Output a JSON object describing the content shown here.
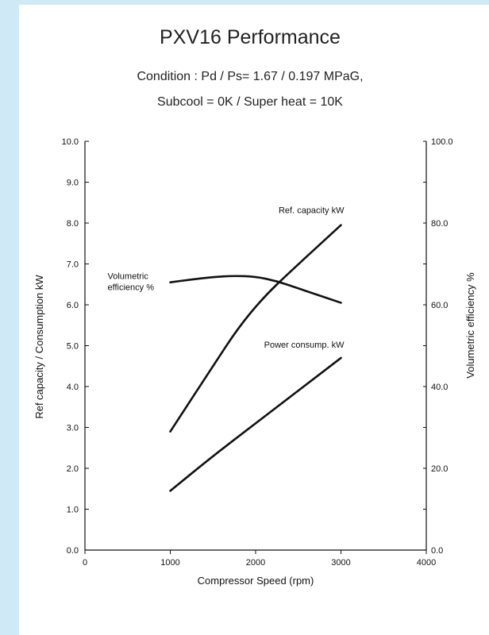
{
  "chart_data": {
    "type": "line",
    "title": "PXV16 Performance",
    "subtitle_lines": [
      "Condition : Pd / Ps= 1.67 / 0.197 MPaG,",
      "Subcool = 0K / Super heat = 10K"
    ],
    "xlabel": "Compressor Speed (rpm)",
    "ylabel_left": "Ref capacity / Consumption kW",
    "ylabel_right": "Volumetric efficiency %",
    "xlim": [
      0,
      4000
    ],
    "ylim_left": [
      0,
      10
    ],
    "ylim_right": [
      0,
      100
    ],
    "x_ticks": [
      "0",
      "1000",
      "2000",
      "3000",
      "4000"
    ],
    "y_left_ticks": [
      "0.0",
      "1.0",
      "2.0",
      "3.0",
      "4.0",
      "5.0",
      "6.0",
      "7.0",
      "8.0",
      "9.0",
      "10.0"
    ],
    "y_right_ticks": [
      "0.0",
      "20.0",
      "40.0",
      "60.0",
      "80.0",
      "100.0"
    ],
    "grid": false,
    "series": [
      {
        "name": "Ref. capacity kW",
        "axis": "left",
        "x": [
          1000,
          1500,
          1800,
          2100,
          2400,
          3000
        ],
        "y": [
          2.9,
          4.5,
          5.45,
          6.2,
          6.8,
          7.95
        ]
      },
      {
        "name": "Power consump. kW",
        "axis": "left",
        "x": [
          1000,
          1500,
          2000,
          2500,
          3000
        ],
        "y": [
          1.45,
          2.3,
          3.1,
          3.9,
          4.7
        ]
      },
      {
        "name": "Volumetric efficiency %",
        "axis": "right",
        "x": [
          1000,
          1250,
          1500,
          1750,
          2000,
          2250,
          2500,
          3000
        ],
        "y": [
          65.5,
          66.2,
          66.8,
          67.1,
          66.9,
          65.8,
          64.0,
          60.5
        ]
      }
    ],
    "annotations": [
      {
        "lines": [
          "Ref. capacity kW"
        ],
        "series": "Ref. capacity kW"
      },
      {
        "lines": [
          "Volumetric",
          "efficiency %"
        ],
        "series": "Volumetric efficiency %"
      },
      {
        "lines": [
          "Power consump. kW"
        ],
        "series": "Power consump. kW"
      }
    ],
    "colors": {
      "line": "#111111",
      "background_band": "#cfe9f7"
    }
  }
}
